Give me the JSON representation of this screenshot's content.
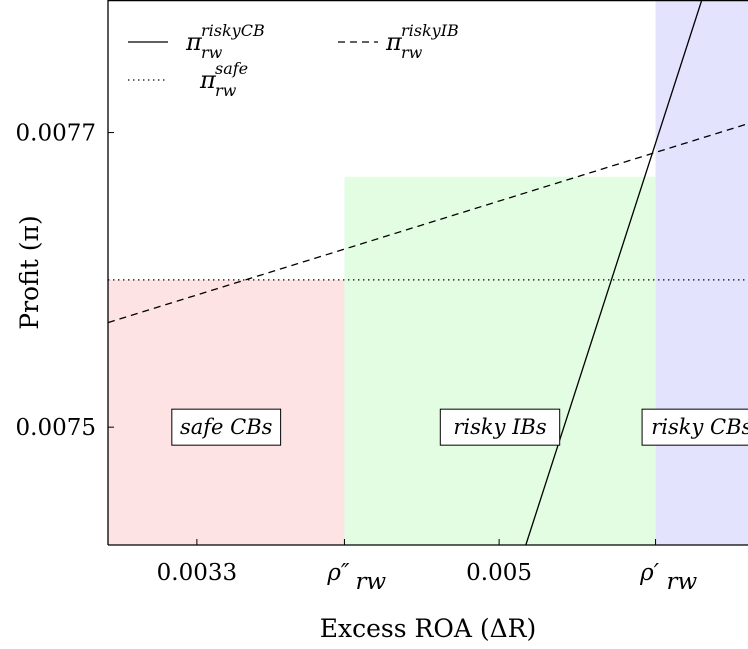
{
  "chart_data": {
    "type": "line",
    "title": "",
    "xlabel": "Excess ROA (ΔR)",
    "ylabel": "Profit (π)",
    "xlim": [
      0.0028,
      0.0064
    ],
    "ylim": [
      0.00742,
      0.00779
    ],
    "x_ticks": [
      {
        "value": 0.0033,
        "label": "0.0033"
      },
      {
        "value": 0.00413,
        "label": "ρ″",
        "sub": "rw"
      },
      {
        "value": 0.005,
        "label": "0.005"
      },
      {
        "value": 0.00588,
        "label": "ρ′",
        "sub": "rw"
      }
    ],
    "y_ticks": [
      {
        "value": 0.0075,
        "label": "0.0075"
      },
      {
        "value": 0.0077,
        "label": "0.0077"
      }
    ],
    "series": [
      {
        "name": "π",
        "sup": "riskyCB",
        "sub": "rw",
        "style": "solid",
        "color": "#000000",
        "x": [
          0.00515,
          0.00614
        ],
        "y": [
          0.00742,
          0.00779
        ]
      },
      {
        "name": "π",
        "sup": "riskyIB",
        "sub": "rw",
        "style": "dashed",
        "color": "#000000",
        "x": [
          0.0028,
          0.0064
        ],
        "y": [
          0.007571,
          0.007706
        ]
      },
      {
        "name": "π",
        "sup": "safe",
        "sub": "rw",
        "style": "dotted",
        "color": "#000000",
        "x": [
          0.0028,
          0.0064
        ],
        "y": [
          0.0076,
          0.0076
        ]
      }
    ],
    "regions": [
      {
        "label": "safe CBs",
        "x_from": 0.0028,
        "x_to": 0.00413,
        "y_to": 0.0076,
        "color": "#fde3e3"
      },
      {
        "label": "risky IBs",
        "x_from": 0.00413,
        "x_to": 0.00588,
        "y_to": 0.00767,
        "color": "#e3fde3"
      },
      {
        "label": "risky CBs",
        "x_from": 0.00588,
        "x_to": 0.0064,
        "y_to": 0.00779,
        "color": "#e3e3fd"
      }
    ],
    "region_label_y": 0.0075,
    "legend_position": "top-left",
    "grid": false
  }
}
